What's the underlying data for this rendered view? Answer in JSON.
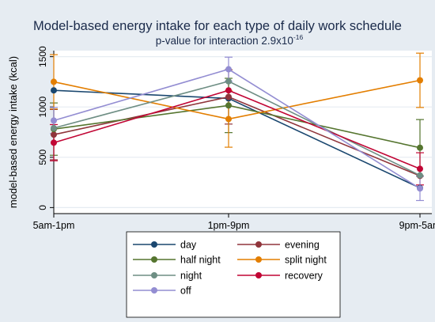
{
  "chart_data": {
    "type": "line",
    "title": "Model-based energy intake for each type of daily work schedule",
    "subtitle": "p-value for interaction 2.9x10",
    "subtitle_exponent": "-16",
    "ylabel": "model-based energy intake (kcal)",
    "xlabel": "",
    "categories": [
      "5am-1pm",
      "1pm-9pm",
      "9pm-5am"
    ],
    "ylim": [
      -60,
      1560
    ],
    "yticks": [
      0,
      500,
      1000,
      1500
    ],
    "yticks_labels": [
      "0",
      "500",
      "1000",
      "1500"
    ],
    "grid": true,
    "legend_placement": "bottom",
    "error_bars": "confidence interval whiskers",
    "series": [
      {
        "name": "day",
        "color": "#1a476f",
        "values": [
          1165,
          1085,
          195
        ],
        "err": [
          0,
          0,
          0
        ]
      },
      {
        "name": "evening",
        "color": "#90353b",
        "values": [
          725,
          1100,
          315
        ],
        "err": [
          250,
          270,
          0
        ]
      },
      {
        "name": "half night",
        "color": "#55752f",
        "values": [
          780,
          1015,
          595
        ],
        "err": [
          260,
          270,
          280
        ]
      },
      {
        "name": "split night",
        "color": "#e37e00",
        "values": [
          1250,
          880,
          1265
        ],
        "err": [
          270,
          280,
          270
        ]
      },
      {
        "name": "night",
        "color": "#6e8e84",
        "values": [
          790,
          1255,
          320
        ],
        "err": [
          0,
          0,
          0
        ]
      },
      {
        "name": "recovery",
        "color": "#c10534",
        "values": [
          645,
          1165,
          385
        ],
        "err": [
          180,
          0,
          160
        ]
      },
      {
        "name": "off",
        "color": "#938dd2",
        "values": [
          865,
          1375,
          190
        ],
        "err": [
          130,
          120,
          120
        ]
      }
    ]
  }
}
